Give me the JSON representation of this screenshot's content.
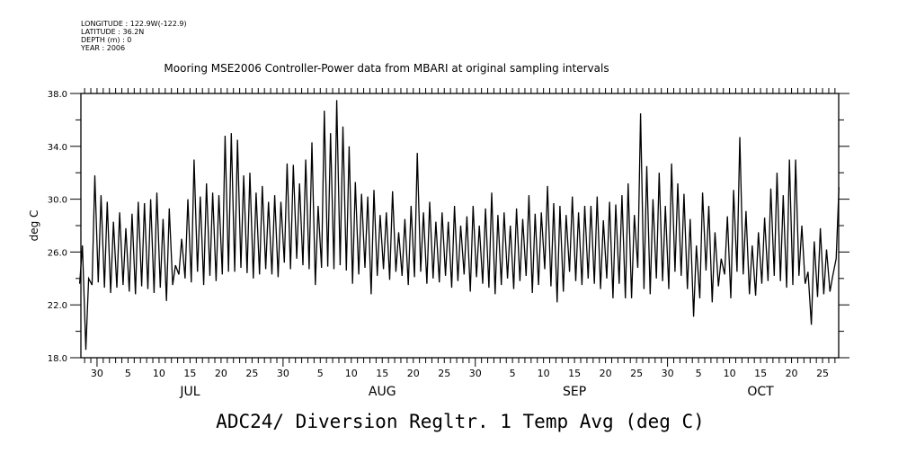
{
  "header": {
    "longitude": "LONGITUDE : 122.9W(-122.9)",
    "latitude": "LATITUDE : 36.2N",
    "depth": "DEPTH (m) : 0",
    "year": "YEAR : 2006"
  },
  "chart_data": {
    "type": "line",
    "title": "Mooring MSE2006 Controller-Power data from MBARI at original sampling intervals",
    "xlabel": "ADC24/ Diversion Regltr. 1 Temp Avg (deg C)",
    "ylabel": "deg C",
    "x_units": "days since 2006-06-27",
    "xlim": [
      0.4,
      122.6
    ],
    "ylim": [
      18,
      38
    ],
    "y_ticks": [
      {
        "value": 18,
        "label": "18.0"
      },
      {
        "value": 22,
        "label": "22.0"
      },
      {
        "value": 26,
        "label": "26.0"
      },
      {
        "value": 30,
        "label": "30.0"
      },
      {
        "value": 34,
        "label": "34.0"
      },
      {
        "value": 38,
        "label": "38.0"
      }
    ],
    "x_ticks": [
      {
        "day": 3,
        "label": "30"
      },
      {
        "day": 8,
        "label": "5"
      },
      {
        "day": 13,
        "label": "10"
      },
      {
        "day": 18,
        "label": "15"
      },
      {
        "day": 23,
        "label": "20"
      },
      {
        "day": 28,
        "label": "25"
      },
      {
        "day": 33,
        "label": "30"
      },
      {
        "day": 39,
        "label": "5"
      },
      {
        "day": 44,
        "label": "10"
      },
      {
        "day": 49,
        "label": "15"
      },
      {
        "day": 54,
        "label": "20"
      },
      {
        "day": 59,
        "label": "25"
      },
      {
        "day": 64,
        "label": "30"
      },
      {
        "day": 70,
        "label": "5"
      },
      {
        "day": 75,
        "label": "10"
      },
      {
        "day": 80,
        "label": "15"
      },
      {
        "day": 85,
        "label": "20"
      },
      {
        "day": 90,
        "label": "25"
      },
      {
        "day": 95,
        "label": "30"
      },
      {
        "day": 100,
        "label": "5"
      },
      {
        "day": 105,
        "label": "10"
      },
      {
        "day": 110,
        "label": "15"
      },
      {
        "day": 115,
        "label": "20"
      },
      {
        "day": 120,
        "label": "25"
      }
    ],
    "month_labels": [
      {
        "day": 18,
        "label": "JUL"
      },
      {
        "day": 49,
        "label": "AUG"
      },
      {
        "day": 80,
        "label": "SEP"
      },
      {
        "day": 110,
        "label": "OCT"
      }
    ],
    "series": [
      {
        "name": "ADC24 Diversion Regltr. 1 Temp Avg",
        "daily_max": [
          26.5,
          24.0,
          31.8,
          30.3,
          29.8,
          28.3,
          29.0,
          27.8,
          28.9,
          29.8,
          29.7,
          30.0,
          30.5,
          28.5,
          29.3,
          25.0,
          27.0,
          30.0,
          33.0,
          30.2,
          31.2,
          30.5,
          30.3,
          34.8,
          35.0,
          34.5,
          31.8,
          32.0,
          30.5,
          31.0,
          29.8,
          30.3,
          29.8,
          32.7,
          32.6,
          31.2,
          33.0,
          34.3,
          29.5,
          36.7,
          35.0,
          37.5,
          35.5,
          34.0,
          31.3,
          30.4,
          30.2,
          30.7,
          28.8,
          29.0,
          30.6,
          27.5,
          28.5,
          29.5,
          33.5,
          29.0,
          29.8,
          28.3,
          29.0,
          28.3,
          29.5,
          28.0,
          28.7,
          29.5,
          28.0,
          29.3,
          30.5,
          28.8,
          29.0,
          28.0,
          29.3,
          28.5,
          30.3,
          28.9,
          29.0,
          31.0,
          29.7,
          29.5,
          28.8,
          30.2,
          29.0,
          29.5,
          29.5,
          30.2,
          28.4,
          29.8,
          29.6,
          30.3,
          31.2,
          28.8,
          36.5,
          32.5,
          30.0,
          32.0,
          29.5,
          32.7,
          31.2,
          30.4,
          28.5,
          26.5,
          30.5,
          29.5,
          27.5,
          25.5,
          28.7,
          30.7,
          34.7,
          29.1,
          26.5,
          27.5,
          28.6,
          30.8,
          32.0,
          30.3,
          33.0,
          33.0,
          28.0,
          24.5,
          26.8,
          27.8,
          26.2,
          24.2,
          30.9
        ],
        "daily_min": [
          23.6,
          18.6,
          23.5,
          23.7,
          23.3,
          22.9,
          23.3,
          23.5,
          23.0,
          22.8,
          23.4,
          23.2,
          22.9,
          23.3,
          22.3,
          23.5,
          24.3,
          24.0,
          23.7,
          24.5,
          23.5,
          24.2,
          23.8,
          24.3,
          24.5,
          24.5,
          24.8,
          24.4,
          24.0,
          24.3,
          24.7,
          24.3,
          24.1,
          25.2,
          24.7,
          25.5,
          25.0,
          24.7,
          23.5,
          24.8,
          24.9,
          24.7,
          25.0,
          24.6,
          23.6,
          24.3,
          24.8,
          22.8,
          24.2,
          24.7,
          23.9,
          24.5,
          24.2,
          23.5,
          24.1,
          24.5,
          23.6,
          24.0,
          23.7,
          24.2,
          23.3,
          23.8,
          24.3,
          23.0,
          24.1,
          23.6,
          23.3,
          22.8,
          23.5,
          24.0,
          23.2,
          23.8,
          24.2,
          22.9,
          23.5,
          24.7,
          23.4,
          22.2,
          23.0,
          24.5,
          23.8,
          23.5,
          24.0,
          23.6,
          23.2,
          24.0,
          22.5,
          23.6,
          22.5,
          22.5,
          24.8,
          23.2,
          22.8,
          24.0,
          23.8,
          23.2,
          24.5,
          24.2,
          23.2,
          21.1,
          22.5,
          24.6,
          22.2,
          23.4,
          24.3,
          22.5,
          24.5,
          24.3,
          22.8,
          22.7,
          23.6,
          23.8,
          24.2,
          23.8,
          23.3,
          23.5,
          24.2,
          23.6,
          20.5,
          22.6,
          22.8,
          23.0,
          25.5
        ]
      }
    ]
  }
}
